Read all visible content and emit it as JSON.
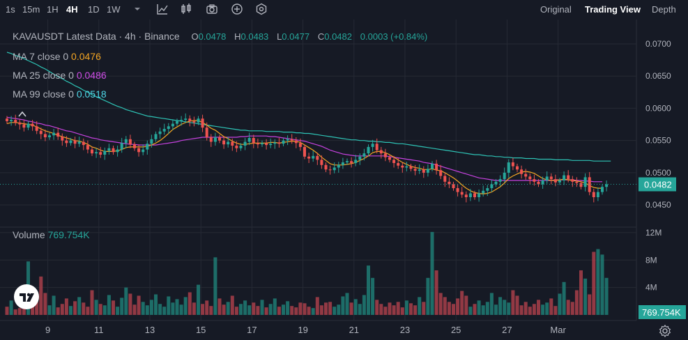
{
  "toolbar": {
    "timeframes": [
      "1s",
      "15m",
      "1H",
      "4H",
      "1D",
      "1W"
    ],
    "active_timeframe": "4H",
    "icons": [
      "chevron-down-icon",
      "indicator-icon",
      "candles-icon",
      "camera-icon",
      "plus-icon",
      "settings-hex-icon"
    ],
    "views": [
      "Original",
      "Trading View",
      "Depth"
    ],
    "active_view": "Trading View"
  },
  "legend": {
    "title": "KAVAUSDT Latest Data · 4h · Binance",
    "o_label": "O",
    "o_value": "0.0478",
    "h_label": "H",
    "h_value": "0.0483",
    "l_label": "L",
    "l_value": "0.0477",
    "c_label": "C",
    "c_value": "0.0482",
    "change": "0.0003 (+0.84%)",
    "ma7_label": "MA 7 close 0",
    "ma7_value": "0.0476",
    "ma25_label": "MA 25 close 0",
    "ma25_value": "0.0486",
    "ma99_label": "MA 99 close 0",
    "ma99_value": "0.0518",
    "volume_label": "Volume",
    "volume_value": "769.754K"
  },
  "colors": {
    "background": "#161a25",
    "grid": "#262a35",
    "up": "#26a69a",
    "down": "#ef5350",
    "ma7": "#f5a623",
    "ma25": "#c742e0",
    "ma99": "#2ec4b6",
    "price_tag": "#26a69a"
  },
  "chart_data": {
    "type": "candlestick",
    "symbol": "KAVAUSDT",
    "interval": "4h",
    "price_axis": {
      "ticks": [
        "0.0700",
        "0.0650",
        "0.0600",
        "0.0550",
        "0.0500",
        "0.0450"
      ],
      "range": [
        0.0422,
        0.0727
      ]
    },
    "volume_axis": {
      "ticks": [
        "12M",
        "8M",
        "4M"
      ],
      "range": [
        0,
        12600000
      ]
    },
    "x_axis": {
      "ticks": [
        "9",
        "11",
        "13",
        "15",
        "17",
        "19",
        "21",
        "23",
        "25",
        "27",
        "Mar"
      ],
      "tick_candle_index": [
        6,
        18,
        30,
        42,
        54,
        66,
        78,
        90,
        102,
        114,
        126
      ]
    },
    "last_price": "0.0482",
    "last_volume": "769.754K",
    "closes": [
      0.058,
      0.0582,
      0.0578,
      0.0575,
      0.057,
      0.0576,
      0.0572,
      0.0565,
      0.056,
      0.0555,
      0.0558,
      0.0562,
      0.0556,
      0.055,
      0.0546,
      0.055,
      0.0545,
      0.0548,
      0.0543,
      0.0536,
      0.053,
      0.0532,
      0.0528,
      0.0534,
      0.0538,
      0.0532,
      0.0536,
      0.0546,
      0.0552,
      0.0544,
      0.0538,
      0.0532,
      0.0536,
      0.0545,
      0.0552,
      0.056,
      0.0564,
      0.0568,
      0.0572,
      0.0576,
      0.058,
      0.0582,
      0.0584,
      0.058,
      0.0578,
      0.0584,
      0.057,
      0.0555,
      0.0548,
      0.0555,
      0.055,
      0.0544,
      0.0548,
      0.0542,
      0.0538,
      0.0542,
      0.0548,
      0.0554,
      0.0546,
      0.0544,
      0.0546,
      0.0543,
      0.0545,
      0.0547,
      0.0545,
      0.055,
      0.0552,
      0.055,
      0.0546,
      0.054,
      0.0525,
      0.0522,
      0.0526,
      0.052,
      0.0512,
      0.0505,
      0.0504,
      0.0508,
      0.0512,
      0.0516,
      0.0518,
      0.0515,
      0.052,
      0.0525,
      0.053,
      0.054,
      0.0545,
      0.0535,
      0.053,
      0.0524,
      0.052,
      0.0515,
      0.0511,
      0.0508,
      0.051,
      0.0506,
      0.0503,
      0.0505,
      0.05,
      0.0506,
      0.0514,
      0.0504,
      0.0495,
      0.0486,
      0.0482,
      0.0476,
      0.047,
      0.0466,
      0.0462,
      0.0468,
      0.0462,
      0.0468,
      0.0472,
      0.0476,
      0.0482,
      0.0486,
      0.049,
      0.05,
      0.0516,
      0.051,
      0.0505,
      0.0498,
      0.0494,
      0.049,
      0.0486,
      0.0482,
      0.0488,
      0.0494,
      0.049,
      0.0485,
      0.0488,
      0.0496,
      0.049,
      0.0486,
      0.0484,
      0.0478,
      0.0493,
      0.047,
      0.0462,
      0.047,
      0.0478,
      0.0482
    ],
    "volumes": [
      1.2,
      2.1,
      0.8,
      1.0,
      1.5,
      7.8,
      2.2,
      1.9,
      5.6,
      3.2,
      1.4,
      2.8,
      1.1,
      1.6,
      2.4,
      1.3,
      2.0,
      2.6,
      1.8,
      1.2,
      3.6,
      2.2,
      1.6,
      1.4,
      2.9,
      2.1,
      1.2,
      2.5,
      4.0,
      3.1,
      1.5,
      2.8,
      1.9,
      1.4,
      2.2,
      3.0,
      1.6,
      1.2,
      2.7,
      1.8,
      2.3,
      1.5,
      2.6,
      3.3,
      1.8,
      4.4,
      1.6,
      2.1,
      1.3,
      8.4,
      2.4,
      1.5,
      1.9,
      2.8,
      1.2,
      1.6,
      2.1,
      1.4,
      1.8,
      1.3,
      2.2,
      1.1,
      1.6,
      2.4,
      1.2,
      1.5,
      2.0,
      1.3,
      1.1,
      1.8,
      1.7,
      1.2,
      1.0,
      2.6,
      1.4,
      1.8,
      1.9,
      1.2,
      1.5,
      2.7,
      3.2,
      1.8,
      2.3,
      1.6,
      2.9,
      7.2,
      5.4,
      2.2,
      1.6,
      1.2,
      1.8,
      1.4,
      1.9,
      1.1,
      2.1,
      1.7,
      1.4,
      2.6,
      1.9,
      5.4,
      12.1,
      6.5,
      3.2,
      2.6,
      1.9,
      1.6,
      2.4,
      3.5,
      2.8,
      1.2,
      1.6,
      2.1,
      1.4,
      1.9,
      3.2,
      1.5,
      2.6,
      2.2,
      1.8,
      3.6,
      2.8,
      1.4,
      1.9,
      1.2,
      1.6,
      2.2,
      1.5,
      1.8,
      2.4,
      1.3,
      3.1,
      4.8,
      2.2,
      1.9,
      3.6,
      6.5,
      5.3,
      3.0,
      9.2,
      9.6,
      8.8,
      5.4,
      0.77
    ],
    "ma7": [
      0.0576,
      0.0578,
      0.0578,
      0.0577,
      0.0576,
      0.0575,
      0.0574,
      0.0571,
      0.0568,
      0.0565,
      0.0563,
      0.0561,
      0.0558,
      0.0556,
      0.0554,
      0.0552,
      0.055,
      0.0549,
      0.0547,
      0.0544,
      0.054,
      0.0538,
      0.0535,
      0.0533,
      0.0533,
      0.0533,
      0.0534,
      0.0536,
      0.0539,
      0.054,
      0.054,
      0.054,
      0.054,
      0.0541,
      0.0543,
      0.0546,
      0.055,
      0.0555,
      0.0561,
      0.0567,
      0.0571,
      0.0575,
      0.0578,
      0.058,
      0.0581,
      0.0581,
      0.0578,
      0.0574,
      0.0569,
      0.0566,
      0.0561,
      0.0556,
      0.0553,
      0.0549,
      0.0546,
      0.0544,
      0.0544,
      0.0545,
      0.0546,
      0.0546,
      0.0546,
      0.0546,
      0.0547,
      0.0547,
      0.0546,
      0.0547,
      0.0548,
      0.0549,
      0.0549,
      0.0547,
      0.0543,
      0.0539,
      0.0535,
      0.053,
      0.0524,
      0.0519,
      0.0514,
      0.0512,
      0.0512,
      0.0512,
      0.0513,
      0.0514,
      0.0516,
      0.0519,
      0.0522,
      0.0526,
      0.0531,
      0.0533,
      0.0533,
      0.0531,
      0.0528,
      0.0524,
      0.052,
      0.0516,
      0.0513,
      0.051,
      0.0508,
      0.0507,
      0.0505,
      0.0505,
      0.0506,
      0.0504,
      0.0503,
      0.05,
      0.0496,
      0.0492,
      0.0487,
      0.0481,
      0.0476,
      0.0472,
      0.0469,
      0.0468,
      0.0467,
      0.0468,
      0.047,
      0.0474,
      0.0478,
      0.0484,
      0.0491,
      0.0495,
      0.0498,
      0.0501,
      0.0502,
      0.0501,
      0.0499,
      0.0495,
      0.0491,
      0.0489,
      0.0488,
      0.0488,
      0.0489,
      0.049,
      0.0489,
      0.0488,
      0.0487,
      0.0486,
      0.0484,
      0.048,
      0.0477,
      0.0476,
      0.0476
    ],
    "ma25": [
      0.0586,
      0.0585,
      0.0584,
      0.0583,
      0.0582,
      0.058,
      0.0579,
      0.0577,
      0.0576,
      0.0574,
      0.0573,
      0.0571,
      0.0569,
      0.0567,
      0.0565,
      0.0564,
      0.0562,
      0.056,
      0.0558,
      0.0556,
      0.0554,
      0.0553,
      0.0551,
      0.055,
      0.0549,
      0.0548,
      0.0547,
      0.0546,
      0.0545,
      0.0544,
      0.0544,
      0.0543,
      0.0543,
      0.0543,
      0.0543,
      0.0543,
      0.0544,
      0.0545,
      0.0546,
      0.0547,
      0.0548,
      0.055,
      0.0551,
      0.0552,
      0.0553,
      0.0554,
      0.0555,
      0.0555,
      0.0555,
      0.0555,
      0.0555,
      0.0555,
      0.0555,
      0.0555,
      0.0555,
      0.0556,
      0.0556,
      0.0557,
      0.0557,
      0.0557,
      0.0557,
      0.0557,
      0.0556,
      0.0556,
      0.0555,
      0.0554,
      0.0553,
      0.0552,
      0.0551,
      0.055,
      0.0549,
      0.0547,
      0.0545,
      0.0543,
      0.0541,
      0.0538,
      0.0535,
      0.0533,
      0.0531,
      0.0529,
      0.0528,
      0.0527,
      0.0526,
      0.0526,
      0.0526,
      0.0526,
      0.0526,
      0.0526,
      0.0526,
      0.0526,
      0.0525,
      0.0524,
      0.0523,
      0.0522,
      0.0521,
      0.052,
      0.0519,
      0.0518,
      0.0516,
      0.0515,
      0.0514,
      0.0512,
      0.051,
      0.0508,
      0.0506,
      0.0504,
      0.0502,
      0.05,
      0.0498,
      0.0496,
      0.0494,
      0.0492,
      0.0491,
      0.049,
      0.0489,
      0.0488,
      0.0488,
      0.0488,
      0.0488,
      0.0488,
      0.0488,
      0.0488,
      0.0488,
      0.0488,
      0.0488,
      0.0488,
      0.0488,
      0.0488,
      0.0488,
      0.0489,
      0.0489,
      0.0489,
      0.0489,
      0.0489,
      0.0488,
      0.0488,
      0.0487,
      0.0487,
      0.0486,
      0.0486,
      0.0486
    ],
    "ma99": [
      0.0687,
      0.0685,
      0.0682,
      0.068,
      0.0677,
      0.0674,
      0.0671,
      0.0668,
      0.0664,
      0.0661,
      0.0657,
      0.0653,
      0.0649,
      0.0646,
      0.0642,
      0.0639,
      0.0635,
      0.0632,
      0.0628,
      0.0625,
      0.0621,
      0.0618,
      0.0615,
      0.0612,
      0.0609,
      0.0606,
      0.0603,
      0.0601,
      0.0598,
      0.0596,
      0.0594,
      0.0592,
      0.059,
      0.0588,
      0.0587,
      0.0586,
      0.0585,
      0.0584,
      0.0583,
      0.0582,
      0.0581,
      0.058,
      0.0579,
      0.0578,
      0.0577,
      0.0576,
      0.0575,
      0.0574,
      0.0573,
      0.0572,
      0.0571,
      0.057,
      0.0569,
      0.0568,
      0.0567,
      0.0566,
      0.0566,
      0.0565,
      0.0565,
      0.0565,
      0.0565,
      0.0564,
      0.0564,
      0.0564,
      0.0564,
      0.0563,
      0.0563,
      0.0563,
      0.0562,
      0.0562,
      0.0561,
      0.0561,
      0.056,
      0.0559,
      0.0558,
      0.0557,
      0.0556,
      0.0555,
      0.0554,
      0.0553,
      0.0552,
      0.0551,
      0.0551,
      0.055,
      0.055,
      0.0549,
      0.0549,
      0.0548,
      0.0548,
      0.0547,
      0.0547,
      0.0546,
      0.0545,
      0.0545,
      0.0544,
      0.0543,
      0.0542,
      0.0541,
      0.054,
      0.0539,
      0.0538,
      0.0537,
      0.0536,
      0.0535,
      0.0534,
      0.0533,
      0.0532,
      0.0531,
      0.053,
      0.0529,
      0.0528,
      0.0528,
      0.0527,
      0.0526,
      0.0526,
      0.0525,
      0.0525,
      0.0524,
      0.0524,
      0.0523,
      0.0523,
      0.0523,
      0.0522,
      0.0522,
      0.0522,
      0.0521,
      0.0521,
      0.0521,
      0.0521,
      0.052,
      0.052,
      0.052,
      0.052,
      0.0519,
      0.0519,
      0.0519,
      0.0519,
      0.0519,
      0.0518,
      0.0518,
      0.0518,
      0.0518,
      0.0518
    ]
  }
}
